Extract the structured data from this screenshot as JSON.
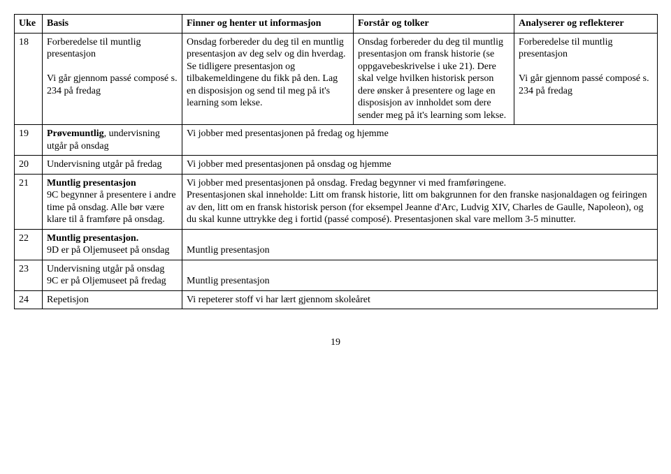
{
  "headers": {
    "uke": "Uke",
    "basis": "Basis",
    "finner": "Finner og henter ut informasjon",
    "forstar": "Forstår og tolker",
    "analy": "Analyserer og reflekterer"
  },
  "row18": {
    "uke": "18",
    "basis": "Forberedelse til muntlig presentasjon\n\nVi går gjennom passé composé s. 234 på fredag",
    "finner": "Onsdag forbereder du deg til en muntlig presentasjon av deg selv og din hverdag. Se tidligere presentasjon og tilbakemeldingene du fikk på den. Lag en disposisjon og send til meg på it's learning som lekse.",
    "forstar": "Onsdag forbereder du deg til muntlig presentasjon om fransk historie (se oppgavebeskrivelse i uke 21). Dere skal velge hvilken historisk person dere ønsker å presentere og lage en disposisjon av innholdet som dere sender meg på it's learning som lekse.",
    "analy": "Forberedelse til muntlig presentasjon\n\nVi går gjennom passé composé s. 234 på fredag"
  },
  "row19": {
    "uke": "19",
    "basis_bold": "Prøvemuntlig",
    "basis_rest": ", undervisning utgår på onsdag",
    "merged": "Vi jobber med presentasjonen på fredag og hjemme"
  },
  "row20": {
    "uke": "20",
    "basis": "Undervisning utgår på fredag",
    "merged": "Vi jobber med presentasjonen på onsdag og hjemme"
  },
  "row21": {
    "uke": "21",
    "basis_bold": "Muntlig presentasjon",
    "basis_rest": "\n9C begynner å presentere i andre time på onsdag. Alle bør være klare til å framføre på onsdag.",
    "merged": "Vi jobber med presentasjonen på onsdag. Fredag begynner vi med framføringene.\nPresentasjonen skal inneholde: Litt om fransk historie, litt om bakgrunnen for den franske nasjonaldagen og feiringen av den, litt om en fransk historisk person (for eksempel Jeanne d'Arc, Ludvig XIV, Charles de Gaulle, Napoleon), og du skal kunne uttrykke deg i fortid (passé composé). Presentasjonen skal vare mellom 3-5 minutter."
  },
  "row22": {
    "uke": "22",
    "basis_bold": "Muntlig presentasjon.",
    "basis_rest": "\n9D er på Oljemuseet på onsdag",
    "merged": "\nMuntlig presentasjon"
  },
  "row23": {
    "uke": "23",
    "basis": "Undervisning utgår på onsdag\n9C er på Oljemuseet på fredag",
    "merged": "\nMuntlig presentasjon"
  },
  "row24": {
    "uke": "24",
    "basis": "Repetisjon",
    "merged": "Vi repeterer stoff vi har lært gjennom skoleåret"
  },
  "pageNumber": "19"
}
